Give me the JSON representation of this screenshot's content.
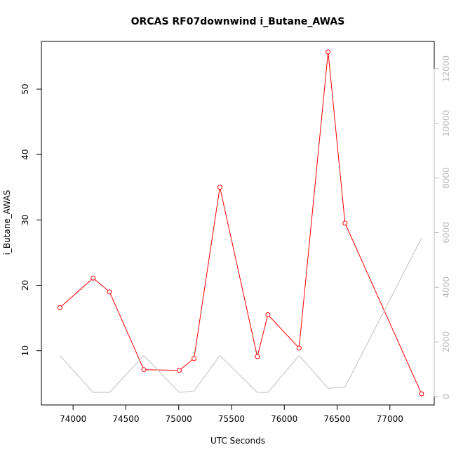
{
  "chart_data": {
    "type": "line",
    "title": "ORCAS RF07downwind i_Butane_AWAS",
    "xlabel": "UTC Seconds",
    "ylabel": "i_Butane_AWAS",
    "y2label": "",
    "xlim": [
      73700,
      77420
    ],
    "ylim": [
      1.7,
      57.3
    ],
    "y2lim": [
      -310,
      13000
    ],
    "x_ticks": [
      74000,
      74500,
      75000,
      75500,
      76000,
      76500,
      77000
    ],
    "y_ticks": [
      10,
      20,
      30,
      40,
      50
    ],
    "y2_ticks": [
      0,
      2000,
      4000,
      6000,
      8000,
      10000,
      12000
    ],
    "grid": false,
    "colors": {
      "primary_series": "#ff0000",
      "secondary_series": "#c0c0c0",
      "right_axis": "#b8b8b8"
    },
    "series": [
      {
        "axis": "left",
        "style": "line+open-circles",
        "x": [
          73875,
          74190,
          74345,
          74670,
          75005,
          75145,
          75390,
          75745,
          75845,
          76140,
          76415,
          76575,
          77300
        ],
        "y": [
          16.6,
          21.1,
          19.0,
          7.1,
          7.0,
          8.8,
          35.0,
          9.1,
          15.5,
          10.4,
          55.7,
          29.5,
          3.4
        ]
      },
      {
        "axis": "right",
        "style": "line",
        "x": [
          73875,
          74190,
          74345,
          74670,
          75005,
          75145,
          75390,
          75745,
          75845,
          76140,
          76415,
          76575,
          77300
        ],
        "y": [
          1500,
          150,
          150,
          1500,
          150,
          200,
          1500,
          150,
          150,
          1500,
          300,
          350,
          5800
        ]
      }
    ]
  }
}
